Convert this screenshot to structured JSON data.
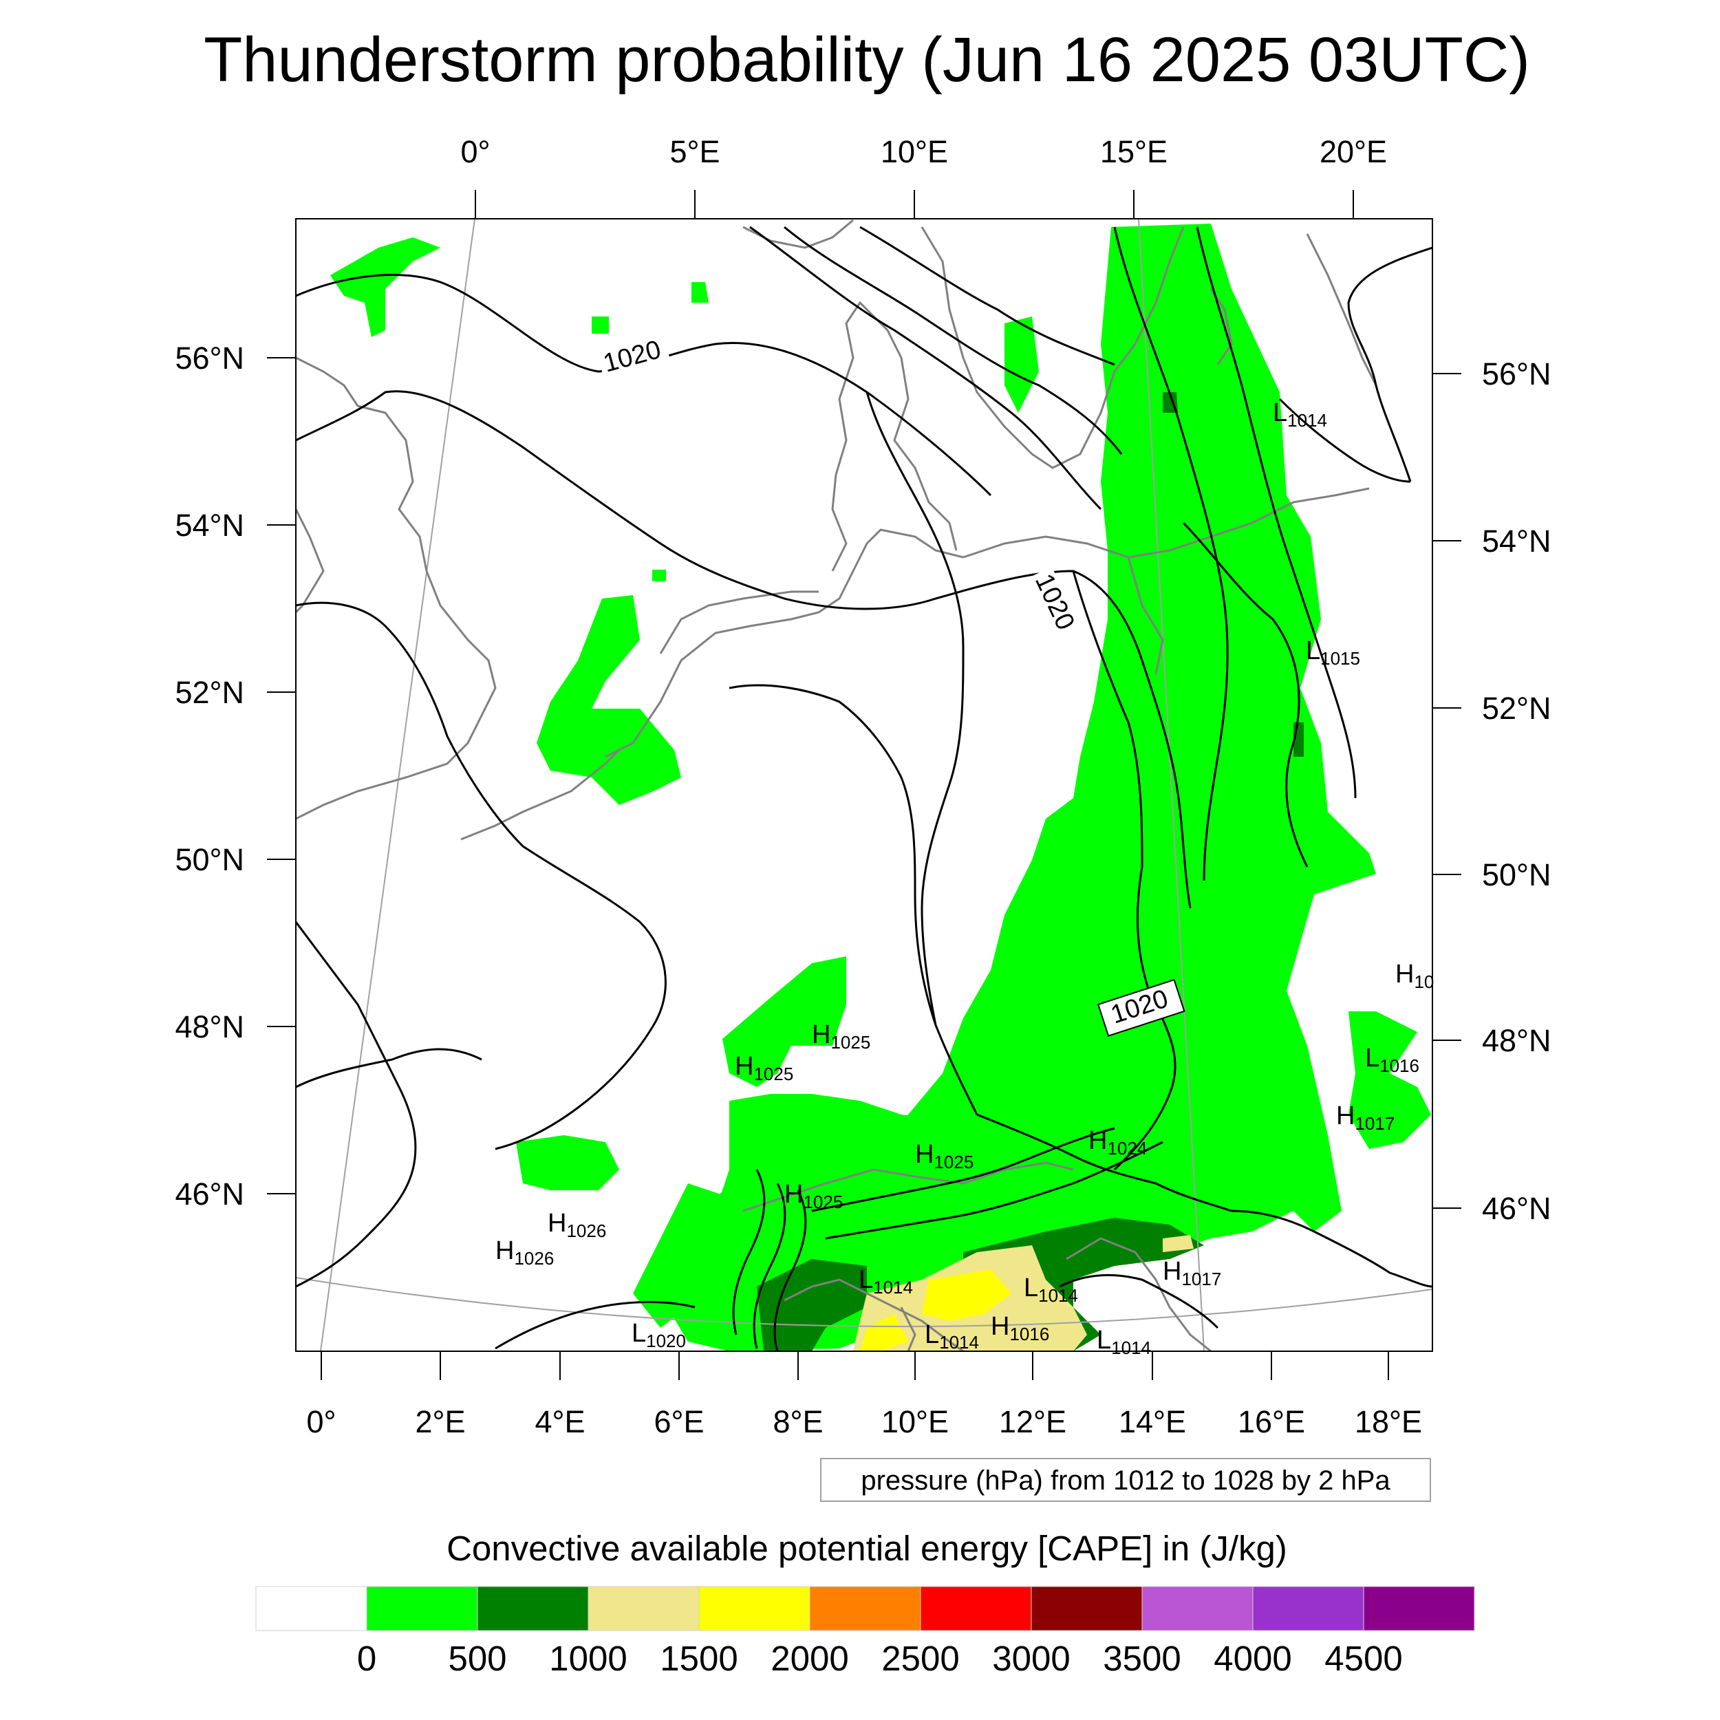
{
  "title": "Thunderstorm probability (Jun 16 2025 03UTC)",
  "map": {
    "top_lon_labels": [
      "0°",
      "5°E",
      "10°E",
      "15°E",
      "20°E"
    ],
    "bottom_lon_labels": [
      "0°",
      "2°E",
      "4°E",
      "6°E",
      "8°E",
      "10°E",
      "12°E",
      "14°E",
      "16°E",
      "18°E"
    ],
    "left_lat_labels": [
      "56°N",
      "54°N",
      "52°N",
      "50°N",
      "48°N",
      "46°N"
    ],
    "right_lat_labels": [
      "56°N",
      "54°N",
      "52°N",
      "50°N",
      "48°N",
      "46°N"
    ],
    "contour_labels": [
      "1020",
      "1020",
      "1020"
    ],
    "pressure_centers": [
      {
        "type": "L",
        "value": "1014"
      },
      {
        "type": "L",
        "value": "1015"
      },
      {
        "type": "H",
        "value": "10"
      },
      {
        "type": "L",
        "value": "1016"
      },
      {
        "type": "H",
        "value": "1017"
      },
      {
        "type": "H",
        "value": "1025"
      },
      {
        "type": "H",
        "value": "1025"
      },
      {
        "type": "H",
        "value": "1025"
      },
      {
        "type": "H",
        "value": "1024"
      },
      {
        "type": "H",
        "value": "1025"
      },
      {
        "type": "H",
        "value": "1026"
      },
      {
        "type": "H",
        "value": "1026"
      },
      {
        "type": "L",
        "value": "1014"
      },
      {
        "type": "L",
        "value": "1014"
      },
      {
        "type": "H",
        "value": "1017"
      },
      {
        "type": "L",
        "value": "1014"
      },
      {
        "type": "H",
        "value": "1016"
      },
      {
        "type": "L",
        "value": "1014"
      },
      {
        "type": "L",
        "value": "1020"
      }
    ],
    "colors": {
      "contour": "#000000",
      "coastline": "#808080",
      "graticule": "#a0a0a0"
    }
  },
  "note": "pressure (hPa) from 1012 to 1028 by 2 hPa",
  "colorbar": {
    "title": "Convective available potential energy [CAPE] in (J/kg)",
    "tick_labels": [
      "0",
      "500",
      "1000",
      "1500",
      "2000",
      "2500",
      "3000",
      "3500",
      "4000",
      "4500"
    ],
    "colors": [
      "#ffffff",
      "#00ff00",
      "#008000",
      "#f0e68c",
      "#ffff00",
      "#ff8000",
      "#ff0000",
      "#8b0000",
      "#ba55d3",
      "#9932cc",
      "#8b008b"
    ]
  }
}
